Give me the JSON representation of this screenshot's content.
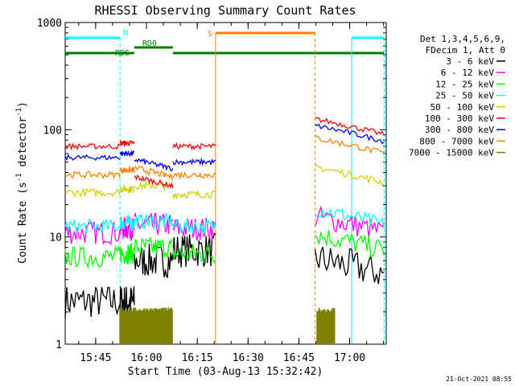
{
  "chart_data": {
    "type": "line",
    "title": "RHESSI Observing Summary Count Rates",
    "xlabel": "Start Time (03-Aug-13 15:32:42)",
    "ylabel_main": "Count Rate (s",
    "ylabel_sup1": "-1",
    "ylabel_mid": " detector",
    "ylabel_sup2": "-1",
    "ylabel_end": ")",
    "y_scale": "log",
    "ylim": [
      1,
      1000
    ],
    "xlim_minutes": [
      15.6,
      17.18
    ],
    "y_ticks": [
      {
        "v": 1,
        "label": "1"
      },
      {
        "v": 10,
        "label": "10"
      },
      {
        "v": 100,
        "label": "100"
      },
      {
        "v": 1000,
        "label": "1000"
      }
    ],
    "x_ticks": [
      {
        "t": 15.75,
        "label": "15:45"
      },
      {
        "t": 16.0,
        "label": "16:00"
      },
      {
        "t": 16.25,
        "label": "16:15"
      },
      {
        "t": 16.5,
        "label": "16:30"
      },
      {
        "t": 16.75,
        "label": "16:45"
      },
      {
        "t": 17.0,
        "label": "17:00"
      }
    ],
    "legend_header": [
      "Det 1,3,4,5,6,9,",
      "FDecim 1, Att 0"
    ],
    "legend_position": "right",
    "series": [
      {
        "name": "3 - 6 keV",
        "color": "#000000"
      },
      {
        "name": "6 - 12 keV",
        "color": "#ff00ff"
      },
      {
        "name": "12 - 25 keV",
        "color": "#00ff00"
      },
      {
        "name": "25 - 50 keV",
        "color": "#00ffff"
      },
      {
        "name": "50 - 100 keV",
        "color": "#d4d000"
      },
      {
        "name": "100 - 300 keV",
        "color": "#ff0000"
      },
      {
        "name": "300 - 800 keV",
        "color": "#0000ff"
      },
      {
        "name": "800 - 7000 keV",
        "color": "#ff8000"
      },
      {
        "name": "7000 - 15000 keV",
        "color": "#808000"
      }
    ],
    "flags": {
      "night": {
        "label": "N",
        "color": "#00ffff",
        "spans": [
          [
            15.6,
            15.87
          ],
          [
            17.01,
            17.17
          ]
        ],
        "boundaries": [
          15.87,
          17.01,
          17.17
        ]
      },
      "saa": {
        "label": "S",
        "color": "#ff8000",
        "spans": [
          [
            16.34,
            16.83
          ]
        ],
        "boundaries": [
          16.34,
          16.83
        ]
      },
      "rd0": {
        "label": "RD0",
        "color": "#008000",
        "spans": [
          [
            15.94,
            16.13
          ]
        ]
      },
      "rd6": {
        "label": "RD6",
        "color": "#008000",
        "spans": [
          [
            15.6,
            15.94
          ],
          [
            16.13,
            17.17
          ]
        ]
      }
    }
  },
  "footer_date": "21-Oct-2021 08:55"
}
